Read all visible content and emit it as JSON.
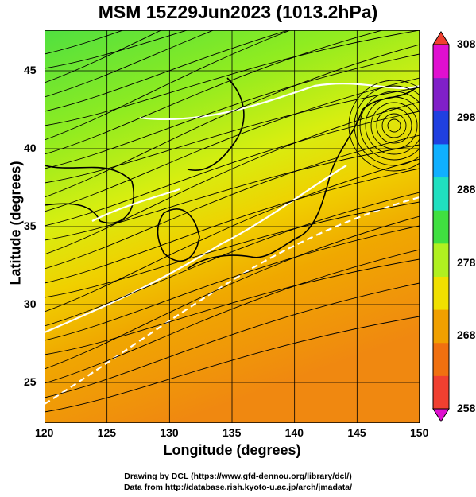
{
  "title": "MSM 15Z29Jun2023 (1013.2hPa)",
  "axes": {
    "xlabel": "Longitude (degrees)",
    "ylabel": "Latitude  (degrees)",
    "xticks": [
      "120",
      "125",
      "130",
      "135",
      "140",
      "145",
      "150"
    ],
    "yticks": [
      "25",
      "30",
      "35",
      "40",
      "45"
    ],
    "xlim": [
      120,
      150
    ],
    "ylim": [
      22.4,
      47.6
    ]
  },
  "colorbar": {
    "ticks": [
      "308",
      "298",
      "288",
      "278",
      "268",
      "258"
    ],
    "range": [
      258,
      308
    ],
    "colors": [
      "#e010d0",
      "#8020c8",
      "#2040e0",
      "#10b0ff",
      "#20e0c0",
      "#40e040",
      "#b0f020",
      "#f0e000",
      "#f0a000",
      "#f07010",
      "#f04030"
    ]
  },
  "credits": {
    "line1": "Drawing by DCL (https://www.gfd-dennou.org/library/dcl/)",
    "line2": "Data from http://database.rish.kyoto-u.ac.jp/arch/jmadata/"
  }
}
